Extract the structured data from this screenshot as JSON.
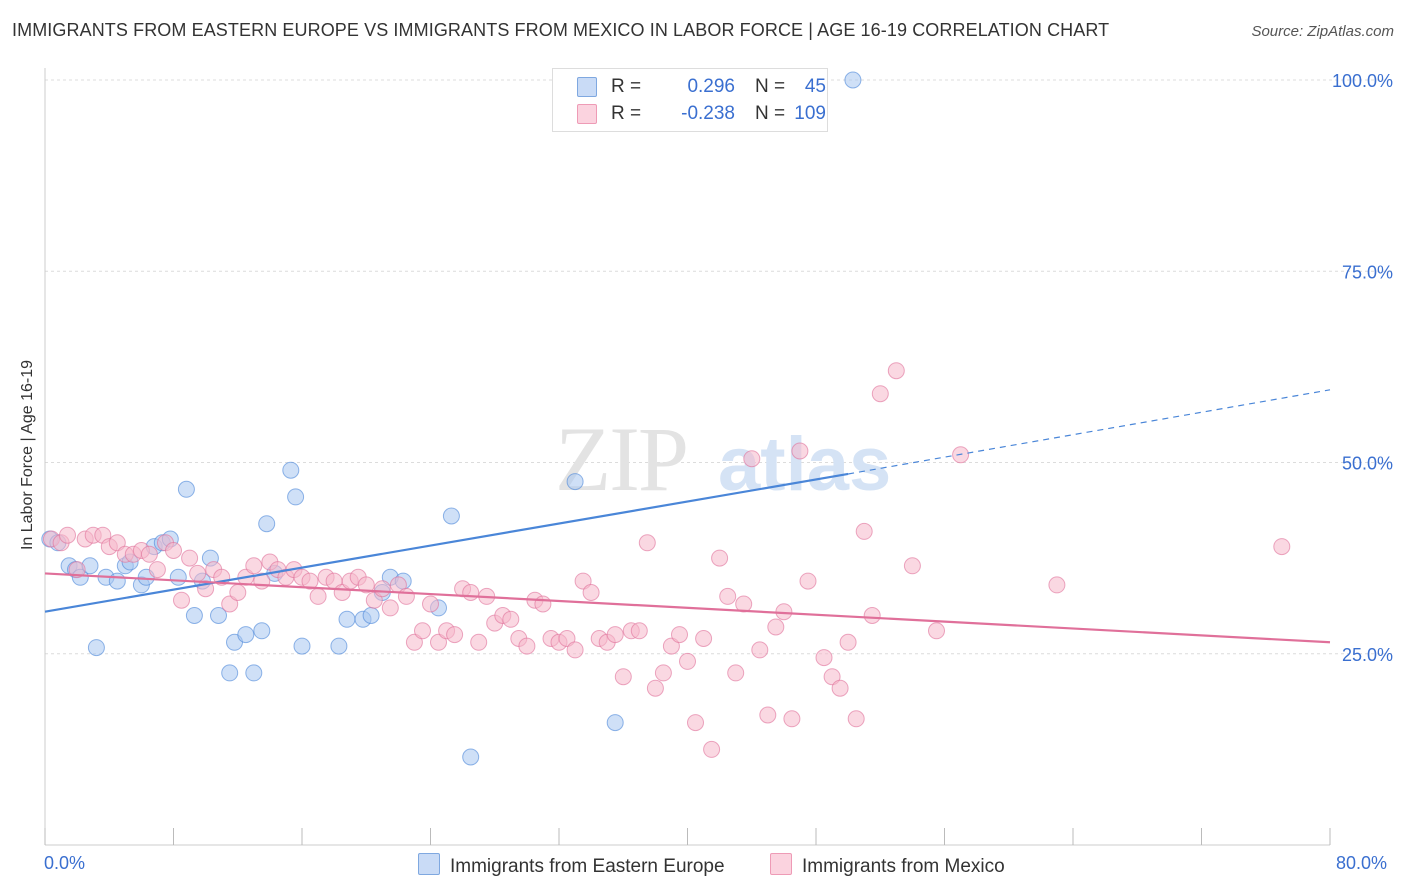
{
  "title": "IMMIGRANTS FROM EASTERN EUROPE VS IMMIGRANTS FROM MEXICO IN LABOR FORCE | AGE 16-19 CORRELATION CHART",
  "source": "Source: ZipAtlas.com",
  "legend_top": {
    "rows": [
      {
        "r_label": "R =",
        "r_value": "0.296",
        "n_label": "N =",
        "n_value": "45",
        "color": "#a8c6f0"
      },
      {
        "r_label": "R =",
        "r_value": "-0.238",
        "n_label": "N =",
        "n_value": "109",
        "color": "#f6b8cb"
      }
    ]
  },
  "legend_bottom": [
    {
      "label": "Immigrants from Eastern Europe",
      "color": "#a8c6f0"
    },
    {
      "label": "Immigrants from Mexico",
      "color": "#f6b8cb"
    }
  ],
  "chart_data": {
    "type": "scatter",
    "ylabel": "In Labor Force | Age 16-19",
    "xlim": [
      0,
      80
    ],
    "ylim": [
      0,
      105
    ],
    "x_tick_labels": [
      "0.0%",
      "80.0%"
    ],
    "y_ticks": [
      25,
      50,
      75,
      100
    ],
    "y_tick_labels": [
      "25.0%",
      "50.0%",
      "75.0%",
      "100.0%"
    ],
    "grid": true,
    "series": [
      {
        "name": "Immigrants from Eastern Europe",
        "color": "#4a86d8",
        "fill": "#a8c6f0",
        "trend": {
          "x0": 0,
          "y0": 30.5,
          "x1": 50,
          "y1": 48.5,
          "dash_to_x": 80,
          "dash_to_y": 59.5
        },
        "points": [
          [
            0.3,
            40.0
          ],
          [
            0.8,
            39.5
          ],
          [
            1.5,
            36.5
          ],
          [
            1.9,
            36.0
          ],
          [
            2.2,
            35.0
          ],
          [
            2.8,
            36.5
          ],
          [
            3.2,
            25.8
          ],
          [
            3.8,
            35.0
          ],
          [
            4.5,
            34.5
          ],
          [
            5.0,
            36.5
          ],
          [
            5.3,
            37.0
          ],
          [
            6.0,
            34.0
          ],
          [
            6.3,
            35.0
          ],
          [
            6.8,
            39.0
          ],
          [
            7.3,
            39.5
          ],
          [
            7.8,
            40.0
          ],
          [
            8.3,
            35.0
          ],
          [
            8.8,
            46.5
          ],
          [
            9.3,
            30.0
          ],
          [
            9.8,
            34.5
          ],
          [
            10.3,
            37.5
          ],
          [
            10.8,
            30.0
          ],
          [
            11.5,
            22.5
          ],
          [
            11.8,
            26.5
          ],
          [
            12.5,
            27.5
          ],
          [
            13.0,
            22.5
          ],
          [
            13.5,
            28.0
          ],
          [
            13.8,
            42.0
          ],
          [
            14.3,
            35.5
          ],
          [
            15.3,
            49.0
          ],
          [
            15.6,
            45.5
          ],
          [
            16.0,
            26.0
          ],
          [
            18.3,
            26.0
          ],
          [
            18.8,
            29.5
          ],
          [
            19.8,
            29.5
          ],
          [
            20.3,
            30.0
          ],
          [
            21.0,
            33.0
          ],
          [
            21.5,
            35.0
          ],
          [
            22.3,
            34.5
          ],
          [
            24.5,
            31.0
          ],
          [
            25.3,
            43.0
          ],
          [
            26.5,
            11.5
          ],
          [
            33.0,
            47.5
          ],
          [
            35.5,
            16.0
          ],
          [
            50.3,
            100.0
          ]
        ]
      },
      {
        "name": "Immigrants from Mexico",
        "color": "#e0709a",
        "fill": "#f6b8cb",
        "trend": {
          "x0": 0,
          "y0": 35.5,
          "x1": 80,
          "y1": 26.5
        },
        "points": [
          [
            0.4,
            40.0
          ],
          [
            1.0,
            39.5
          ],
          [
            1.4,
            40.5
          ],
          [
            2.0,
            36.0
          ],
          [
            2.5,
            40.0
          ],
          [
            3.0,
            40.5
          ],
          [
            3.6,
            40.5
          ],
          [
            4.0,
            39.0
          ],
          [
            4.5,
            39.5
          ],
          [
            5.0,
            38.0
          ],
          [
            5.5,
            38.0
          ],
          [
            6.0,
            38.5
          ],
          [
            6.5,
            38.0
          ],
          [
            7.0,
            36.0
          ],
          [
            7.5,
            39.5
          ],
          [
            8.0,
            38.5
          ],
          [
            8.5,
            32.0
          ],
          [
            9.0,
            37.5
          ],
          [
            9.5,
            35.5
          ],
          [
            10.0,
            33.5
          ],
          [
            10.5,
            36.0
          ],
          [
            11.0,
            35.0
          ],
          [
            11.5,
            31.5
          ],
          [
            12.0,
            33.0
          ],
          [
            12.5,
            35.0
          ],
          [
            13.0,
            36.5
          ],
          [
            13.5,
            34.5
          ],
          [
            14.0,
            37.0
          ],
          [
            14.5,
            36.0
          ],
          [
            15.0,
            35.0
          ],
          [
            15.5,
            36.0
          ],
          [
            16.0,
            35.0
          ],
          [
            16.5,
            34.5
          ],
          [
            17.0,
            32.5
          ],
          [
            17.5,
            35.0
          ],
          [
            18.0,
            34.5
          ],
          [
            18.5,
            33.0
          ],
          [
            19.0,
            34.5
          ],
          [
            19.5,
            35.0
          ],
          [
            20.0,
            34.0
          ],
          [
            20.5,
            32.0
          ],
          [
            21.0,
            33.5
          ],
          [
            21.5,
            31.0
          ],
          [
            22.0,
            34.0
          ],
          [
            22.5,
            32.5
          ],
          [
            23.0,
            26.5
          ],
          [
            23.5,
            28.0
          ],
          [
            24.0,
            31.5
          ],
          [
            24.5,
            26.5
          ],
          [
            25.0,
            28.0
          ],
          [
            25.5,
            27.5
          ],
          [
            26.0,
            33.5
          ],
          [
            26.5,
            33.0
          ],
          [
            27.0,
            26.5
          ],
          [
            27.5,
            32.5
          ],
          [
            28.0,
            29.0
          ],
          [
            28.5,
            30.0
          ],
          [
            29.0,
            29.5
          ],
          [
            29.5,
            27.0
          ],
          [
            30.0,
            26.0
          ],
          [
            30.5,
            32.0
          ],
          [
            31.0,
            31.5
          ],
          [
            31.5,
            27.0
          ],
          [
            32.0,
            26.5
          ],
          [
            32.5,
            27.0
          ],
          [
            33.0,
            25.5
          ],
          [
            33.5,
            34.5
          ],
          [
            34.0,
            33.0
          ],
          [
            34.5,
            27.0
          ],
          [
            35.0,
            26.5
          ],
          [
            35.5,
            27.5
          ],
          [
            36.0,
            22.0
          ],
          [
            36.5,
            28.0
          ],
          [
            37.0,
            28.0
          ],
          [
            37.5,
            39.5
          ],
          [
            38.0,
            20.5
          ],
          [
            38.5,
            22.5
          ],
          [
            39.0,
            26.0
          ],
          [
            39.5,
            27.5
          ],
          [
            40.0,
            24.0
          ],
          [
            40.5,
            16.0
          ],
          [
            41.0,
            27.0
          ],
          [
            41.5,
            12.5
          ],
          [
            42.0,
            37.5
          ],
          [
            42.5,
            32.5
          ],
          [
            43.0,
            22.5
          ],
          [
            43.5,
            31.5
          ],
          [
            44.0,
            50.5
          ],
          [
            44.5,
            25.5
          ],
          [
            45.0,
            17.0
          ],
          [
            45.5,
            28.5
          ],
          [
            46.0,
            30.5
          ],
          [
            46.5,
            16.5
          ],
          [
            47.0,
            51.5
          ],
          [
            47.5,
            34.5
          ],
          [
            48.5,
            24.5
          ],
          [
            49.0,
            22.0
          ],
          [
            49.5,
            20.5
          ],
          [
            50.0,
            26.5
          ],
          [
            50.5,
            16.5
          ],
          [
            51.0,
            41.0
          ],
          [
            51.5,
            30.0
          ],
          [
            52.0,
            59.0
          ],
          [
            53.0,
            62.0
          ],
          [
            54.0,
            36.5
          ],
          [
            55.5,
            28.0
          ],
          [
            57.0,
            51.0
          ],
          [
            63.0,
            34.0
          ],
          [
            77.0,
            39.0
          ]
        ]
      }
    ]
  }
}
